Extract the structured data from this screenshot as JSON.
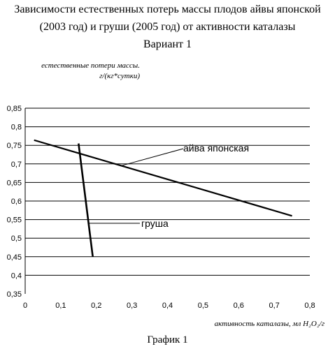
{
  "title": {
    "line1": "Зависимости естественных потерь массы плодов айвы японской",
    "line2": "(2003 год)  и груши   (2005 год)  от активности  каталазы",
    "line3": "Вариант 1"
  },
  "caption": "График 1",
  "chart_data": {
    "type": "line",
    "ylabel_line1": "естественные потери массы.",
    "ylabel_line2": "г/(кг*сутки)",
    "xlabel": "активность каталазы, мл H₂O₂/г",
    "xlim": [
      0,
      0.8
    ],
    "ylim": [
      0.35,
      0.85
    ],
    "xticks": [
      "0",
      "0,1",
      "0,2",
      "0,3",
      "0,4",
      "0,5",
      "0,6",
      "0,7",
      "0,8"
    ],
    "yticks": [
      "0,35",
      "0,4",
      "0,45",
      "0,5",
      "0,55",
      "0,6",
      "0,65",
      "0,7",
      "0,75",
      "0,8",
      "0,85"
    ],
    "grid": "horizontal",
    "series": [
      {
        "name": "айва японская",
        "x": [
          0.025,
          0.75
        ],
        "y": [
          0.764,
          0.56
        ]
      },
      {
        "name": "груша",
        "x": [
          0.15,
          0.19
        ],
        "y": [
          0.755,
          0.45
        ]
      }
    ]
  }
}
